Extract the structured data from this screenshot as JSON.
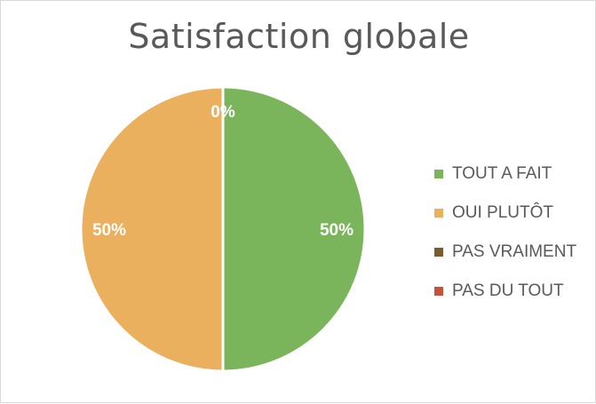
{
  "chart_data": {
    "type": "pie",
    "title": "Satisfaction globale",
    "categories": [
      "TOUT A FAIT",
      "OUI PLUTÔT",
      "PAS VRAIMENT",
      "PAS DU TOUT"
    ],
    "values": [
      50,
      50,
      0,
      0
    ],
    "data_labels": [
      "50%",
      "50%",
      "0%",
      "0%"
    ],
    "colors": [
      "#7ab55c",
      "#ebb05e",
      "#7b5a2e",
      "#c9513a"
    ],
    "legend_position": "right"
  }
}
